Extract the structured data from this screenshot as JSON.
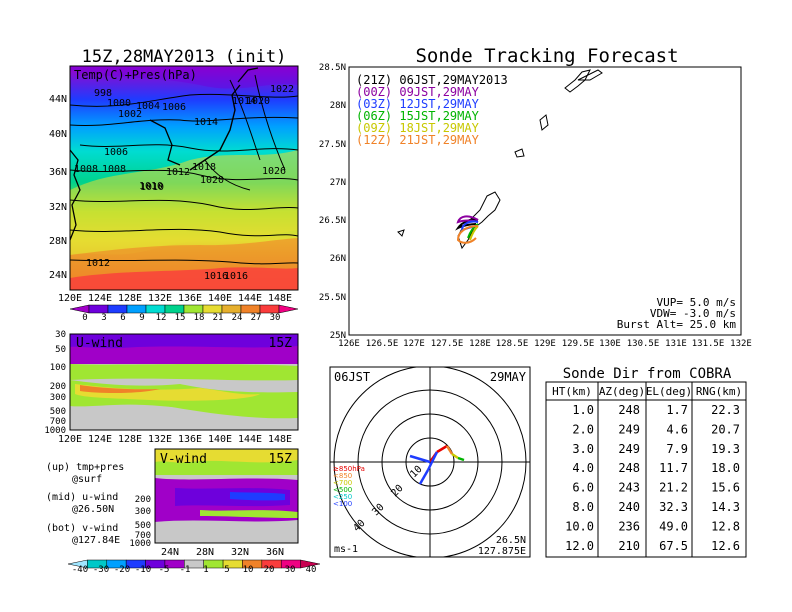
{
  "left_panel": {
    "title": "15Z,28MAY2013 (init)",
    "map_label": "Temp(C)+Pres(hPa)",
    "lon_ticks": [
      "120E",
      "124E",
      "128E",
      "132E",
      "136E",
      "140E",
      "144E",
      "148E"
    ],
    "lat_ticks": [
      "24N",
      "28N",
      "32N",
      "36N",
      "40N",
      "44N"
    ],
    "isobar_labels": [
      "998",
      "1000",
      "1002",
      "1004",
      "1006",
      "1008",
      "1010",
      "1012",
      "1014",
      "1016",
      "1018",
      "1020",
      "1022",
      "1026",
      "1012",
      "1016",
      "1006",
      "1008",
      "1010",
      "1020",
      "1014"
    ],
    "temp_colorbar": {
      "labels": [
        "0",
        "3",
        "6",
        "9",
        "12",
        "15",
        "18",
        "21",
        "24",
        "27",
        "30"
      ],
      "colors": [
        "#a000c8",
        "#6e00dc",
        "#1e3cff",
        "#00a0ff",
        "#00dcd2",
        "#00d28c",
        "#a0e632",
        "#e6dc32",
        "#e6af2d",
        "#f08228",
        "#fa3c3c",
        "#f00082"
      ]
    }
  },
  "u_wind_panel": {
    "label": "U-wind",
    "time": "15Z",
    "p_ticks": [
      "30",
      "50",
      "100",
      "200",
      "300",
      "500",
      "700",
      "1000"
    ],
    "lon_ticks": [
      "120E",
      "124E",
      "128E",
      "132E",
      "136E",
      "140E",
      "144E",
      "148E"
    ]
  },
  "v_wind_panel": {
    "label": "V-wind",
    "time": "15Z",
    "p_ticks": [
      "200",
      "300",
      "500",
      "700",
      "1000"
    ],
    "lat_ticks": [
      "24N",
      "28N",
      "32N",
      "36N"
    ]
  },
  "legend_notes": [
    "(up) tmp+pres",
    "@surf",
    "(mid) u-wind",
    "@26.50N",
    "(bot) v-wind",
    "@127.84E"
  ],
  "wind_colorbar": {
    "labels": [
      "-40",
      "-30",
      "-20",
      "-10",
      "-5",
      "-1",
      "1",
      "5",
      "10",
      "20",
      "30",
      "40"
    ],
    "colors": [
      "#a0e6ff",
      "#00c8c8",
      "#00a0ff",
      "#1e3cff",
      "#6e00dc",
      "#a000c8",
      "#c8c8c8",
      "#a0e632",
      "#e6dc32",
      "#f08228",
      "#fa3c3c",
      "#f00082",
      "#c80050"
    ]
  },
  "forecast_panel": {
    "title": "Sonde Tracking Forecast",
    "lat_ticks": [
      "25N",
      "25.5N",
      "26N",
      "26.5N",
      "27N",
      "27.5N",
      "28N",
      "28.5N"
    ],
    "lon_ticks": [
      "126E",
      "126.5E",
      "127E",
      "127.5E",
      "128E",
      "128.5E",
      "129E",
      "129.5E",
      "130E",
      "130.5E",
      "131E",
      "131.5E",
      "132E"
    ],
    "legend": [
      {
        "text": "(21Z) 06JST,29MAY2013",
        "color": "#000000"
      },
      {
        "text": "(00Z) 09JST,29MAY",
        "color": "#8c00a0"
      },
      {
        "text": "(03Z) 12JST,29MAY",
        "color": "#1e3cff"
      },
      {
        "text": "(06Z) 15JST,29MAY",
        "color": "#00b400"
      },
      {
        "text": "(09Z) 18JST,29MAY",
        "color": "#c8c800"
      },
      {
        "text": "(12Z) 21JST,29MAY",
        "color": "#f08228"
      }
    ],
    "params": [
      "VUP= 5.0 m/s",
      "VDW= -3.0 m/s",
      "Burst Alt= 25.0 km"
    ]
  },
  "polar_panel": {
    "time_label": "06JST",
    "date_label": "29MAY",
    "ring_labels": [
      "10",
      "20",
      "30",
      "40"
    ],
    "level_legend": [
      {
        "text": "≥850hPa",
        "color": "#e60000"
      },
      {
        "text": "<850",
        "color": "#f08228"
      },
      {
        "text": "<700",
        "color": "#c8c800"
      },
      {
        "text": "<500",
        "color": "#00b400"
      },
      {
        "text": "<250",
        "color": "#00c8c8"
      },
      {
        "text": "<100",
        "color": "#1e3cff"
      }
    ],
    "unit": "ms-1",
    "lat": "26.5N",
    "lon": "127.875E"
  },
  "table": {
    "title": "Sonde Dir from COBRA",
    "headers": [
      "HT(km)",
      "AZ(deg)",
      "EL(deg)",
      "RNG(km)"
    ],
    "rows": [
      [
        "1.0",
        "248",
        "1.7",
        "22.3"
      ],
      [
        "2.0",
        "249",
        "4.6",
        "20.7"
      ],
      [
        "3.0",
        "249",
        "7.9",
        "19.3"
      ],
      [
        "4.0",
        "248",
        "11.7",
        "18.0"
      ],
      [
        "6.0",
        "243",
        "21.2",
        "15.6"
      ],
      [
        "8.0",
        "240",
        "32.3",
        "14.3"
      ],
      [
        "10.0",
        "236",
        "49.0",
        "12.8"
      ],
      [
        "12.0",
        "210",
        "67.5",
        "12.6"
      ]
    ]
  },
  "chart_data": [
    {
      "type": "heatmap",
      "title": "15Z,28MAY2013 (init)",
      "xlabel": "",
      "ylabel": "",
      "xlim": [
        "120E",
        "150E"
      ],
      "ylim": [
        "22N",
        "48N"
      ]
    },
    {
      "type": "heatmap",
      "title": "U-wind",
      "xlim": [
        "120E",
        "150E"
      ],
      "ylim": [
        1000,
        30
      ]
    },
    {
      "type": "heatmap",
      "title": "V-wind",
      "xlim": [
        "22N",
        "39N"
      ],
      "ylim": [
        1000,
        150
      ]
    },
    {
      "type": "line",
      "title": "Sonde Tracking Forecast",
      "xlim": [
        126,
        132
      ],
      "ylim": [
        25,
        28.5
      ]
    },
    {
      "type": "table",
      "title": "Sonde Dir from COBRA"
    }
  ]
}
